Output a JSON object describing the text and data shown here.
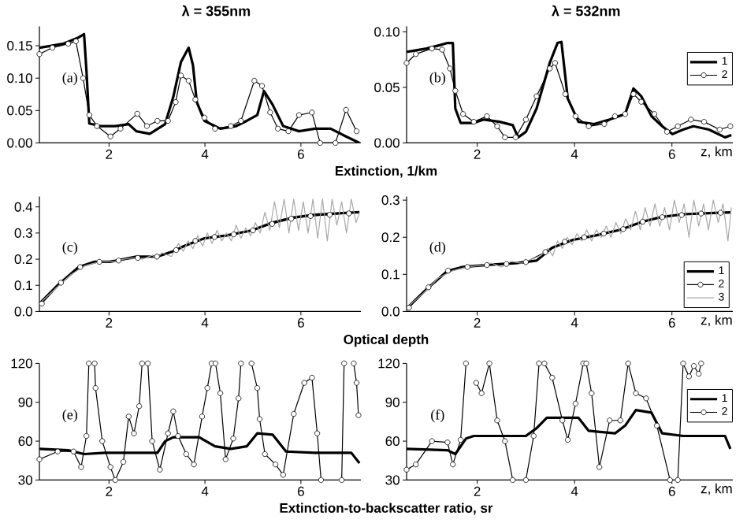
{
  "chart_data": [
    {
      "type": "line",
      "title": "λ = 355nm",
      "annotations": [
        "(a)",
        "Extinction, 1/km"
      ],
      "xlim": [
        0.55,
        7.25
      ],
      "xticks": [
        2,
        4,
        6
      ],
      "ylim": [
        0,
        0.18
      ],
      "yticks": [
        {
          "value": 0,
          "label": "0.00"
        },
        {
          "value": 0.05,
          "label": "0.05"
        },
        {
          "value": 0.1,
          "label": "0.10"
        },
        {
          "value": 0.15,
          "label": "0.15"
        }
      ],
      "legend": false,
      "series": [
        {
          "color": "#000000",
          "marker": "none",
          "x": [
            0.55,
            1.04,
            1.37,
            1.48,
            1.53,
            1.59,
            1.81,
            2.13,
            2.41,
            2.57,
            2.85,
            3.17,
            3.34,
            3.5,
            3.66,
            3.75,
            3.83,
            3.99,
            4.32,
            4.65,
            4.87,
            5.09,
            5.23,
            5.41,
            5.63,
            5.96,
            6.29,
            6.62,
            6.94,
            7.22
          ],
          "values": [
            0.147,
            0.153,
            0.163,
            0.168,
            0.112,
            0.03,
            0.026,
            0.026,
            0.029,
            0.018,
            0.014,
            0.029,
            0.071,
            0.125,
            0.147,
            0.12,
            0.063,
            0.034,
            0.022,
            0.026,
            0.034,
            0.043,
            0.08,
            0.059,
            0.026,
            0.018,
            0.022,
            0.022,
            0.01,
            0
          ]
        },
        {
          "color": "#000000",
          "marker": "circle",
          "x": [
            0.55,
            0.82,
            1.15,
            1.31,
            1.46,
            1.59,
            1.75,
            2.03,
            2.24,
            2.59,
            2.79,
            3.01,
            3.23,
            3.39,
            3.5,
            3.66,
            3.8,
            3.99,
            4.21,
            4.54,
            4.75,
            5.03,
            5.19,
            5.36,
            5.52,
            5.74,
            5.96,
            6.23,
            6.4,
            6.72,
            6.94,
            7.16
          ],
          "values": [
            0.137,
            0.147,
            0.153,
            0.157,
            0.1,
            0.043,
            0.026,
            0.01,
            0.022,
            0.045,
            0.026,
            0.034,
            0.034,
            0.063,
            0.104,
            0.096,
            0.067,
            0.039,
            0.022,
            0.026,
            0.034,
            0.096,
            0.088,
            0.047,
            0.022,
            0.018,
            0.043,
            0.047,
            0,
            0,
            0.051,
            0.018
          ]
        }
      ]
    },
    {
      "type": "line",
      "title": "λ = 532nm",
      "annotations": [
        "(b)"
      ],
      "xlabel": "z, km",
      "xlim": [
        0.55,
        7.25
      ],
      "xticks": [
        2,
        4,
        6
      ],
      "ylim": [
        0,
        0.105
      ],
      "yticks": [
        {
          "value": 0,
          "label": "0.00"
        },
        {
          "value": 0.05,
          "label": "0.05"
        },
        {
          "value": 0.1,
          "label": "0.10"
        }
      ],
      "legend": "top right",
      "series": [
        {
          "name": "1",
          "color": "#000000",
          "marker": "none",
          "x": [
            0.55,
            0.96,
            1.23,
            1.39,
            1.5,
            1.55,
            1.66,
            1.93,
            2.14,
            2.46,
            2.73,
            2.84,
            3.0,
            3.22,
            3.49,
            3.65,
            3.73,
            3.86,
            4.08,
            4.4,
            4.72,
            5.04,
            5.21,
            5.37,
            5.58,
            5.8,
            6.01,
            6.23,
            6.44,
            6.76,
            7.09,
            7.22
          ],
          "values": [
            0.082,
            0.085,
            0.088,
            0.09,
            0.09,
            0.031,
            0.018,
            0.018,
            0.021,
            0.019,
            0.016,
            0.005,
            0.01,
            0.031,
            0.072,
            0.09,
            0.091,
            0.04,
            0.019,
            0.017,
            0.021,
            0.026,
            0.049,
            0.042,
            0.024,
            0.015,
            0.008,
            0.012,
            0.015,
            0.012,
            0.005,
            0.007
          ]
        },
        {
          "name": "2",
          "color": "#000000",
          "marker": "circle",
          "x": [
            0.55,
            0.74,
            1.07,
            1.28,
            1.44,
            1.55,
            1.71,
            1.93,
            2.2,
            2.41,
            2.57,
            2.79,
            3.0,
            3.22,
            3.49,
            3.6,
            3.81,
            4.02,
            4.29,
            4.61,
            4.83,
            5.04,
            5.21,
            5.37,
            5.64,
            5.9,
            6.12,
            6.39,
            6.66,
            6.98,
            7.2
          ],
          "values": [
            0.072,
            0.08,
            0.085,
            0.084,
            0.067,
            0.047,
            0.026,
            0.019,
            0.024,
            0.015,
            0.005,
            0.005,
            0.021,
            0.042,
            0.067,
            0.072,
            0.044,
            0.024,
            0.015,
            0.017,
            0.024,
            0.026,
            0.044,
            0.037,
            0.026,
            0.01,
            0.015,
            0.021,
            0.019,
            0.012,
            0.015
          ]
        }
      ]
    },
    {
      "type": "line",
      "annotations": [
        "(c)",
        "Optical depth"
      ],
      "xlim": [
        0.55,
        7.25
      ],
      "xticks": [
        2,
        4,
        6
      ],
      "ylim": [
        0,
        0.44
      ],
      "yticks": [
        {
          "value": 0,
          "label": "0.0"
        },
        {
          "value": 0.1,
          "label": "0.1"
        },
        {
          "value": 0.2,
          "label": "0.2"
        },
        {
          "value": 0.3,
          "label": "0.3"
        },
        {
          "value": 0.4,
          "label": "0.4"
        }
      ],
      "legend": false,
      "series": [
        {
          "color": "#000000",
          "marker": "none",
          "x": [
            0.55,
            0.93,
            1.37,
            1.7,
            2.03,
            2.57,
            3.01,
            3.34,
            3.56,
            3.99,
            4.43,
            4.98,
            5.41,
            5.85,
            6.29,
            6.72,
            7.22
          ],
          "values": [
            0.03,
            0.1,
            0.17,
            0.19,
            0.19,
            0.21,
            0.21,
            0.23,
            0.25,
            0.28,
            0.29,
            0.31,
            0.34,
            0.36,
            0.37,
            0.375,
            0.38
          ]
        },
        {
          "color": "#000000",
          "marker": "circle",
          "x": [
            0.6,
            1.0,
            1.4,
            1.8,
            2.2,
            2.6,
            3.0,
            3.4,
            3.8,
            4.2,
            4.6,
            5.0,
            5.4,
            5.8,
            6.2,
            6.6,
            7.0
          ],
          "values": [
            0.03,
            0.11,
            0.17,
            0.19,
            0.195,
            0.205,
            0.21,
            0.235,
            0.27,
            0.285,
            0.295,
            0.31,
            0.335,
            0.355,
            0.365,
            0.37,
            0.375
          ]
        },
        {
          "color": "#a8a8a8",
          "marker": "none",
          "x": [
            0.55,
            0.9,
            1.2,
            1.5,
            1.8,
            2.1,
            2.3,
            2.5,
            2.7,
            2.9,
            3.0,
            3.1,
            3.3,
            3.45,
            3.55,
            3.65,
            3.75,
            3.85,
            3.95,
            4.05,
            4.15,
            4.25,
            4.35,
            4.45,
            4.55,
            4.65,
            4.75,
            4.85,
            4.95,
            5.05,
            5.15,
            5.25,
            5.35,
            5.45,
            5.55,
            5.65,
            5.75,
            5.85,
            5.95,
            6.05,
            6.15,
            6.25,
            6.35,
            6.45,
            6.55,
            6.65,
            6.75,
            6.85,
            6.95,
            7.05,
            7.15,
            7.22
          ],
          "values": [
            0.03,
            0.09,
            0.14,
            0.175,
            0.19,
            0.19,
            0.2,
            0.205,
            0.2,
            0.215,
            0.2,
            0.225,
            0.21,
            0.26,
            0.23,
            0.27,
            0.24,
            0.29,
            0.25,
            0.3,
            0.26,
            0.31,
            0.27,
            0.3,
            0.27,
            0.33,
            0.28,
            0.32,
            0.29,
            0.34,
            0.3,
            0.38,
            0.31,
            0.42,
            0.32,
            0.43,
            0.3,
            0.43,
            0.31,
            0.42,
            0.3,
            0.43,
            0.28,
            0.43,
            0.27,
            0.43,
            0.33,
            0.42,
            0.3,
            0.43,
            0.34,
            0.38
          ]
        }
      ]
    },
    {
      "type": "line",
      "annotations": [
        "(d)"
      ],
      "xlabel": "z, km",
      "xlim": [
        0.55,
        7.25
      ],
      "xticks": [
        2,
        4,
        6
      ],
      "ylim": [
        0,
        0.31
      ],
      "yticks": [
        {
          "value": 0,
          "label": "0.0"
        },
        {
          "value": 0.1,
          "label": "0.1"
        },
        {
          "value": 0.2,
          "label": "0.2"
        },
        {
          "value": 0.3,
          "label": "0.3"
        }
      ],
      "legend": "bottom right",
      "series": [
        {
          "name": "1",
          "color": "#000000",
          "marker": "none",
          "x": [
            0.55,
            0.96,
            1.39,
            1.71,
            2.25,
            2.79,
            3.22,
            3.54,
            3.97,
            4.4,
            4.94,
            5.37,
            5.8,
            6.23,
            6.76,
            7.2
          ],
          "values": [
            0.008,
            0.06,
            0.109,
            0.12,
            0.126,
            0.13,
            0.137,
            0.172,
            0.193,
            0.204,
            0.22,
            0.241,
            0.255,
            0.262,
            0.265,
            0.267
          ]
        },
        {
          "name": "2",
          "color": "#000000",
          "marker": "circle",
          "x": [
            0.6,
            1.0,
            1.4,
            1.8,
            2.2,
            2.6,
            3.0,
            3.4,
            3.8,
            4.2,
            4.6,
            5.0,
            5.4,
            5.8,
            6.2,
            6.6,
            7.0
          ],
          "values": [
            0.01,
            0.065,
            0.11,
            0.12,
            0.125,
            0.128,
            0.133,
            0.16,
            0.188,
            0.2,
            0.21,
            0.222,
            0.242,
            0.254,
            0.26,
            0.264,
            0.266
          ]
        },
        {
          "name": "3",
          "color": "#a8a8a8",
          "marker": "none",
          "x": [
            0.55,
            0.9,
            1.2,
            1.5,
            1.8,
            2.1,
            2.3,
            2.5,
            2.7,
            2.9,
            3.1,
            3.3,
            3.45,
            3.55,
            3.65,
            3.75,
            3.85,
            3.95,
            4.05,
            4.15,
            4.25,
            4.35,
            4.45,
            4.55,
            4.65,
            4.75,
            4.85,
            4.95,
            5.05,
            5.15,
            5.25,
            5.35,
            5.45,
            5.55,
            5.65,
            5.75,
            5.85,
            5.95,
            6.05,
            6.15,
            6.25,
            6.35,
            6.45,
            6.55,
            6.65,
            6.75,
            6.85,
            6.95,
            7.05,
            7.15,
            7.22
          ],
          "values": [
            0.01,
            0.05,
            0.09,
            0.11,
            0.12,
            0.125,
            0.13,
            0.12,
            0.135,
            0.13,
            0.14,
            0.15,
            0.17,
            0.15,
            0.19,
            0.17,
            0.2,
            0.18,
            0.21,
            0.19,
            0.22,
            0.19,
            0.22,
            0.2,
            0.23,
            0.2,
            0.24,
            0.21,
            0.25,
            0.22,
            0.27,
            0.22,
            0.28,
            0.23,
            0.29,
            0.23,
            0.28,
            0.22,
            0.3,
            0.24,
            0.29,
            0.2,
            0.3,
            0.23,
            0.29,
            0.22,
            0.3,
            0.24,
            0.29,
            0.19,
            0.28
          ]
        }
      ]
    },
    {
      "type": "line",
      "annotations": [
        "(e)",
        "Extinction-to-backscatter ratio, sr"
      ],
      "xlim": [
        0.55,
        7.25
      ],
      "xticks": [
        2,
        4,
        6
      ],
      "ylim": [
        30,
        120
      ],
      "yticks": [
        30,
        60,
        90,
        120
      ],
      "legend": false,
      "series": [
        {
          "color": "#000000",
          "marker": "none",
          "x": [
            0.55,
            1.15,
            1.48,
            1.92,
            2.46,
            3.01,
            3.17,
            3.34,
            3.88,
            4.21,
            4.54,
            4.87,
            5.09,
            5.41,
            5.69,
            6.29,
            7.05,
            7.22
          ],
          "values": [
            54,
            53,
            50,
            51,
            51,
            51,
            60,
            63,
            63,
            56,
            54,
            56,
            66,
            65,
            52,
            51,
            51,
            43
          ]
        },
        {
          "color": "#000000",
          "marker": "circle",
          "x": [
            0.55,
            0.93,
            1.26,
            1.42,
            1.53,
            1.58,
            1.64,
            1.7,
            1.72,
            1.86,
            2.03,
            2.13,
            2.3,
            2.41,
            2.52,
            2.63,
            2.69,
            2.75,
            2.81,
            2.9,
            3.06,
            3.23,
            3.34,
            3.44,
            3.61,
            3.77,
            3.94,
            4.05,
            4.14,
            4.18,
            4.22,
            4.32,
            4.43,
            4.59,
            4.7,
            4.75,
            4.86,
            4.97,
            5.09,
            5.14,
            5.25,
            5.47,
            5.63,
            5.85,
            6.07,
            6.23,
            6.34,
            6.42,
            6.6,
            6.85,
            6.9,
            7.0,
            7.1,
            7.16,
            7.2
          ],
          "values": [
            46,
            52,
            52,
            40,
            64,
            120,
            null,
            120,
            101,
            60,
            40,
            30,
            44,
            79,
            66,
            87,
            120,
            null,
            120,
            60,
            38,
            66,
            83,
            64,
            50,
            42,
            79,
            101,
            120,
            null,
            120,
            97,
            46,
            62,
            93,
            120,
            null,
            120,
            101,
            77,
            50,
            42,
            34,
            81,
            105,
            109,
            66,
            30,
            null,
            30,
            120,
            null,
            120,
            105,
            80
          ]
        }
      ]
    },
    {
      "type": "line",
      "annotations": [
        "(f)"
      ],
      "xlabel": "z, km",
      "xlim": [
        0.55,
        7.25
      ],
      "xticks": [
        2,
        4,
        6
      ],
      "ylim": [
        30,
        120
      ],
      "yticks": [
        30,
        60,
        90,
        120
      ],
      "legend": "top right",
      "series": [
        {
          "name": "1",
          "color": "#000000",
          "marker": "none",
          "x": [
            0.55,
            1.39,
            1.55,
            1.77,
            1.93,
            3.0,
            3.22,
            3.43,
            4.08,
            4.29,
            4.83,
            5.04,
            5.26,
            5.58,
            5.8,
            6.23,
            7.09,
            7.2
          ],
          "values": [
            54,
            53,
            50,
            62,
            64,
            64,
            70,
            78,
            78,
            68,
            66,
            72,
            84,
            82,
            66,
            64,
            64,
            54
          ]
        },
        {
          "name": "2",
          "color": "#000000",
          "marker": "circle",
          "x": [
            0.55,
            0.74,
            1.07,
            1.39,
            1.5,
            1.66,
            1.77,
            1.87,
            1.98,
            2.09,
            2.25,
            2.41,
            2.57,
            2.73,
            2.86,
            3.0,
            3.16,
            3.27,
            3.32,
            3.38,
            3.54,
            3.75,
            3.86,
            4.02,
            4.18,
            4.21,
            4.24,
            4.35,
            4.51,
            4.72,
            4.94,
            5.1,
            5.26,
            5.47,
            5.69,
            5.96,
            6.04,
            6.12,
            6.23,
            6.35,
            6.45,
            6.55,
            6.6
          ],
          "values": [
            38,
            42,
            60,
            59,
            42,
            61,
            120,
            null,
            105,
            97,
            120,
            76,
            60,
            30,
            null,
            30,
            64,
            120,
            null,
            120,
            109,
            76,
            61,
            89,
            120,
            null,
            120,
            97,
            40,
            76,
            76,
            120,
            97,
            93,
            72,
            30,
            null,
            30,
            120,
            110,
            118,
            112,
            120
          ]
        }
      ]
    }
  ]
}
